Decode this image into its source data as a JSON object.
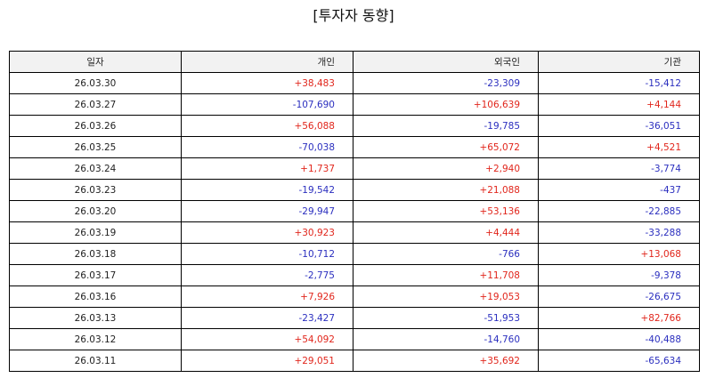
{
  "title": "[투자자 동향]",
  "columns": [
    "일자",
    "개인",
    "외국인",
    "기관"
  ],
  "rows": [
    [
      "26.03.30",
      "+38,483",
      "-23,309",
      "-15,412"
    ],
    [
      "26.03.27",
      "-107,690",
      "+106,639",
      "+4,144"
    ],
    [
      "26.03.26",
      "+56,088",
      "-19,785",
      "-36,051"
    ],
    [
      "26.03.25",
      "-70,038",
      "+65,072",
      "+4,521"
    ],
    [
      "26.03.24",
      "+1,737",
      "+2,940",
      "-3,774"
    ],
    [
      "26.03.23",
      "-19,542",
      "+21,088",
      "-437"
    ],
    [
      "26.03.20",
      "-29,947",
      "+53,136",
      "-22,885"
    ],
    [
      "26.03.19",
      "+30,923",
      "+4,444",
      "-33,288"
    ],
    [
      "26.03.18",
      "-10,712",
      "-766",
      "+13,068"
    ],
    [
      "26.03.17",
      "-2,775",
      "+11,708",
      "-9,378"
    ],
    [
      "26.03.16",
      "+7,926",
      "+19,053",
      "-26,675"
    ],
    [
      "26.03.13",
      "-23,427",
      "-51,953",
      "+82,766"
    ],
    [
      "26.03.12",
      "+54,092",
      "-14,760",
      "-40,488"
    ],
    [
      "26.03.11",
      "+29,051",
      "+35,692",
      "-65,634"
    ]
  ],
  "colors": {
    "positive": "#e1261c",
    "negative": "#2b2fbf",
    "header_bg": "#f2f2f2"
  }
}
